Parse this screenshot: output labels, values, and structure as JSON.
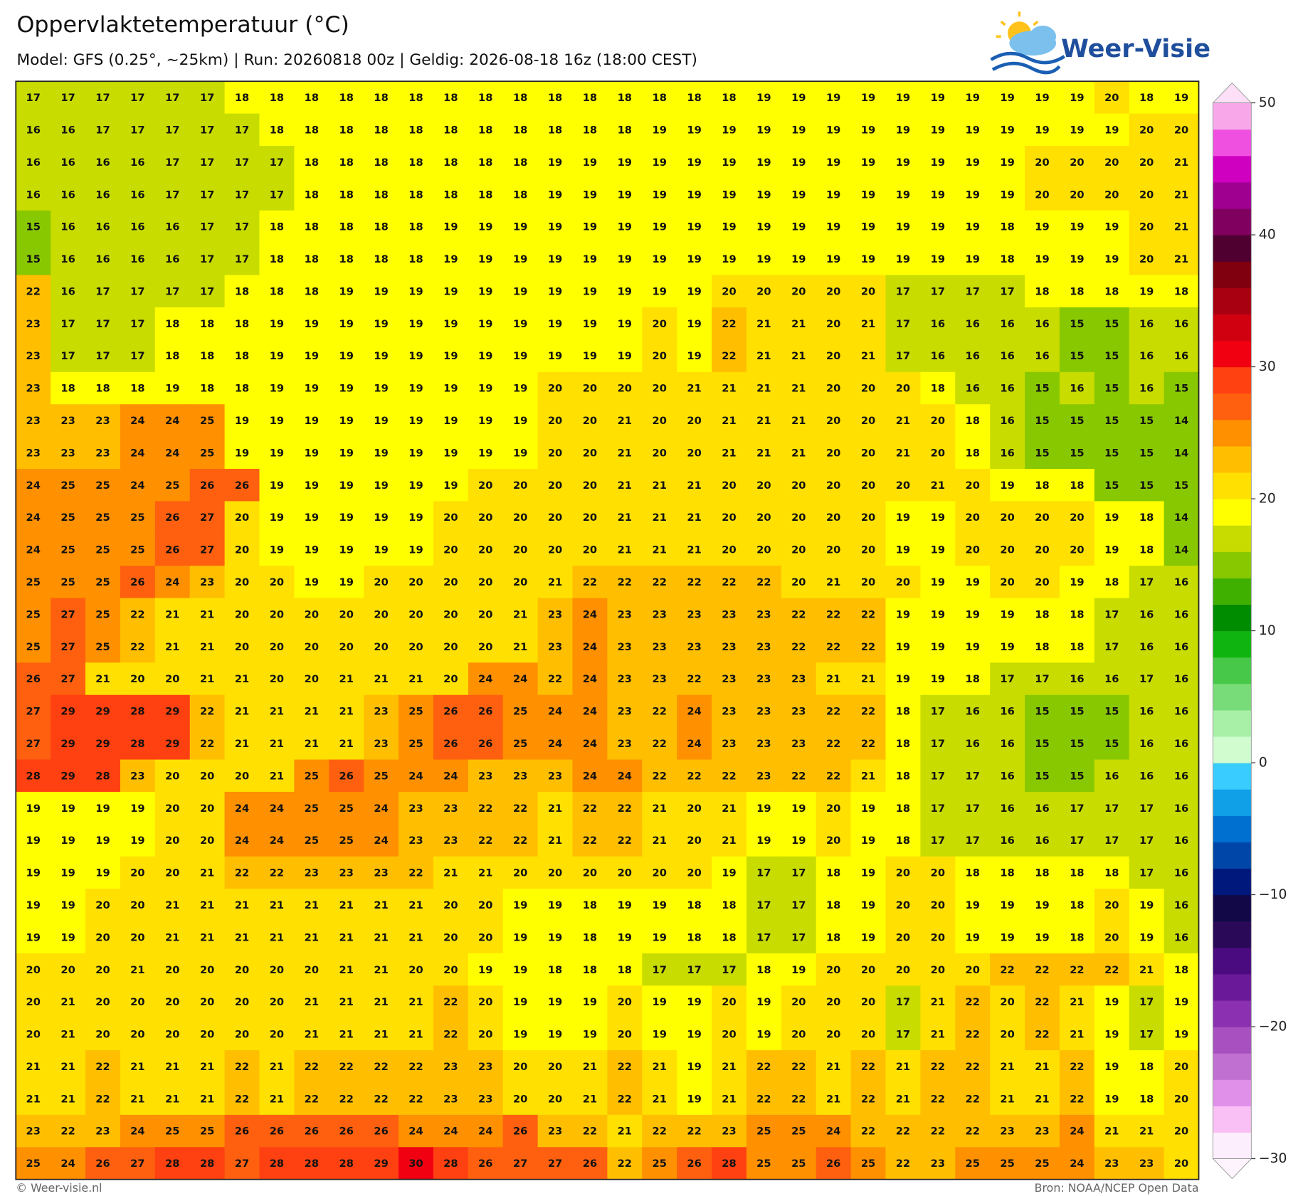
{
  "header": {
    "title": "Oppervlaktetemperatuur (°C)",
    "subtitle": "Model: GFS (0.25°, ~25km)  |  Run: 20260818 00z  |  Geldig: 2026-08-18 16z (18:00 CEST)",
    "logo": "Weer-Visie"
  },
  "footer": {
    "left": "© Weer-visie.nl",
    "right": "Bron: NOAA/NCEP Open Data"
  },
  "colorbar": {
    "lim": [
      -30,
      50
    ],
    "ticks": [
      50,
      40,
      30,
      20,
      10,
      0,
      {
        "value": -10,
        "label": "−10"
      },
      {
        "value": -20,
        "label": "−20"
      },
      {
        "value": -30,
        "label": "−30"
      }
    ],
    "colors": [
      "#fdeefd",
      "#f8c0f4",
      "#e090e8",
      "#c070d0",
      "#a850c0",
      "#8a30b0",
      "#6a1a98",
      "#4a0a80",
      "#2a0a58",
      "#120848",
      "#00187c",
      "#0046a8",
      "#0070d0",
      "#10a0e8",
      "#38ccff",
      "#d0fcd0",
      "#a8f0a8",
      "#78dc78",
      "#48c848",
      "#10b410",
      "#008c00",
      "#40b000",
      "#88c800",
      "#c8dc00",
      "#ffff00",
      "#ffe000",
      "#ffbf00",
      "#ff9000",
      "#ff6010",
      "#ff4010",
      "#f00010",
      "#d00010",
      "#a80010",
      "#800010",
      "#500030",
      "#800060",
      "#a00090",
      "#d000c0",
      "#f050e0",
      "#f8a8e8"
    ]
  },
  "map": {
    "grid": [
      [
        17,
        17,
        17,
        17,
        17,
        17,
        18,
        18,
        18,
        18,
        18,
        18,
        18,
        18,
        18,
        18,
        18,
        18,
        18,
        18,
        18,
        19,
        19,
        19,
        19,
        19,
        19,
        19,
        19,
        19,
        19,
        20,
        18,
        19
      ],
      [
        16,
        16,
        17,
        17,
        17,
        17,
        17,
        18,
        18,
        18,
        18,
        18,
        18,
        18,
        18,
        18,
        18,
        18,
        19,
        19,
        19,
        19,
        19,
        19,
        19,
        19,
        19,
        19,
        19,
        19,
        19,
        19,
        20,
        20
      ],
      [
        16,
        16,
        16,
        16,
        17,
        17,
        17,
        17,
        18,
        18,
        18,
        18,
        18,
        18,
        18,
        19,
        19,
        19,
        19,
        19,
        19,
        19,
        19,
        19,
        19,
        19,
        19,
        19,
        19,
        20,
        20,
        20,
        20,
        21
      ],
      [
        16,
        16,
        16,
        16,
        17,
        17,
        17,
        17,
        18,
        18,
        18,
        18,
        18,
        18,
        18,
        19,
        19,
        19,
        19,
        19,
        19,
        19,
        19,
        19,
        19,
        19,
        19,
        19,
        19,
        20,
        20,
        20,
        20,
        21
      ],
      [
        15,
        16,
        16,
        16,
        16,
        17,
        17,
        18,
        18,
        18,
        18,
        18,
        19,
        19,
        19,
        19,
        19,
        19,
        19,
        19,
        19,
        19,
        19,
        19,
        19,
        19,
        19,
        19,
        18,
        19,
        19,
        19,
        20,
        21
      ],
      [
        15,
        16,
        16,
        16,
        16,
        17,
        17,
        18,
        18,
        18,
        18,
        18,
        19,
        19,
        19,
        19,
        19,
        19,
        19,
        19,
        19,
        19,
        19,
        19,
        19,
        19,
        19,
        19,
        18,
        19,
        19,
        19,
        20,
        21
      ],
      [
        22,
        16,
        17,
        17,
        17,
        17,
        18,
        18,
        18,
        19,
        19,
        19,
        19,
        19,
        19,
        19,
        19,
        19,
        19,
        19,
        20,
        20,
        20,
        20,
        20,
        17,
        17,
        17,
        17,
        18,
        18,
        18,
        19,
        18
      ],
      [
        23,
        17,
        17,
        17,
        18,
        18,
        18,
        19,
        19,
        19,
        19,
        19,
        19,
        19,
        19,
        19,
        19,
        19,
        20,
        19,
        22,
        21,
        21,
        20,
        21,
        17,
        16,
        16,
        16,
        16,
        15,
        15,
        16,
        16
      ],
      [
        23,
        17,
        17,
        17,
        18,
        18,
        18,
        19,
        19,
        19,
        19,
        19,
        19,
        19,
        19,
        19,
        19,
        19,
        20,
        19,
        22,
        21,
        21,
        20,
        21,
        17,
        16,
        16,
        16,
        16,
        15,
        15,
        16,
        16
      ],
      [
        23,
        18,
        18,
        18,
        19,
        18,
        18,
        19,
        19,
        19,
        19,
        19,
        19,
        19,
        19,
        20,
        20,
        20,
        20,
        21,
        21,
        21,
        21,
        20,
        20,
        20,
        18,
        16,
        16,
        15,
        16,
        15,
        16,
        15
      ],
      [
        23,
        23,
        23,
        24,
        24,
        25,
        19,
        19,
        19,
        19,
        19,
        19,
        19,
        19,
        19,
        20,
        20,
        21,
        20,
        20,
        21,
        21,
        21,
        20,
        20,
        21,
        20,
        18,
        16,
        15,
        15,
        15,
        15,
        14
      ],
      [
        23,
        23,
        23,
        24,
        24,
        25,
        19,
        19,
        19,
        19,
        19,
        19,
        19,
        19,
        19,
        20,
        20,
        21,
        20,
        20,
        21,
        21,
        21,
        20,
        20,
        21,
        20,
        18,
        16,
        15,
        15,
        15,
        15,
        14
      ],
      [
        24,
        25,
        25,
        24,
        25,
        26,
        26,
        19,
        19,
        19,
        19,
        19,
        19,
        20,
        20,
        20,
        20,
        21,
        21,
        21,
        20,
        20,
        20,
        20,
        20,
        20,
        21,
        20,
        19,
        18,
        18,
        15,
        15,
        15
      ],
      [
        24,
        25,
        25,
        25,
        26,
        27,
        20,
        19,
        19,
        19,
        19,
        19,
        20,
        20,
        20,
        20,
        20,
        21,
        21,
        21,
        20,
        20,
        20,
        20,
        20,
        19,
        19,
        20,
        20,
        20,
        20,
        19,
        18,
        14
      ],
      [
        24,
        25,
        25,
        25,
        26,
        27,
        20,
        19,
        19,
        19,
        19,
        19,
        20,
        20,
        20,
        20,
        20,
        21,
        21,
        21,
        20,
        20,
        20,
        20,
        20,
        19,
        19,
        20,
        20,
        20,
        20,
        19,
        18,
        14
      ],
      [
        25,
        25,
        25,
        26,
        24,
        23,
        20,
        20,
        19,
        19,
        20,
        20,
        20,
        20,
        20,
        21,
        22,
        22,
        22,
        22,
        22,
        22,
        20,
        21,
        20,
        20,
        19,
        19,
        20,
        20,
        19,
        18,
        17,
        16
      ],
      [
        25,
        27,
        25,
        22,
        21,
        21,
        20,
        20,
        20,
        20,
        20,
        20,
        20,
        20,
        21,
        23,
        24,
        23,
        23,
        23,
        23,
        23,
        22,
        22,
        22,
        19,
        19,
        19,
        19,
        18,
        18,
        17,
        16,
        16
      ],
      [
        25,
        27,
        25,
        22,
        21,
        21,
        20,
        20,
        20,
        20,
        20,
        20,
        20,
        20,
        21,
        23,
        24,
        23,
        23,
        23,
        23,
        23,
        22,
        22,
        22,
        19,
        19,
        19,
        19,
        18,
        18,
        17,
        16,
        16
      ],
      [
        26,
        27,
        21,
        20,
        20,
        21,
        21,
        20,
        20,
        21,
        21,
        21,
        20,
        24,
        24,
        22,
        24,
        23,
        23,
        22,
        23,
        23,
        23,
        21,
        21,
        19,
        19,
        18,
        17,
        17,
        16,
        16,
        17,
        16
      ],
      [
        27,
        29,
        29,
        28,
        29,
        22,
        21,
        21,
        21,
        21,
        23,
        25,
        26,
        26,
        25,
        24,
        24,
        23,
        22,
        24,
        23,
        23,
        23,
        22,
        22,
        18,
        17,
        16,
        16,
        15,
        15,
        15,
        16,
        16
      ],
      [
        27,
        29,
        29,
        28,
        29,
        22,
        21,
        21,
        21,
        21,
        23,
        25,
        26,
        26,
        25,
        24,
        24,
        23,
        22,
        24,
        23,
        23,
        23,
        22,
        22,
        18,
        17,
        16,
        16,
        15,
        15,
        15,
        16,
        16
      ],
      [
        28,
        29,
        28,
        23,
        20,
        20,
        20,
        21,
        25,
        26,
        25,
        24,
        24,
        23,
        23,
        23,
        24,
        24,
        22,
        22,
        22,
        23,
        22,
        22,
        21,
        18,
        17,
        17,
        16,
        15,
        15,
        16,
        16,
        16
      ],
      [
        19,
        19,
        19,
        19,
        20,
        20,
        24,
        24,
        25,
        25,
        24,
        23,
        23,
        22,
        22,
        21,
        22,
        22,
        21,
        20,
        21,
        19,
        19,
        20,
        19,
        18,
        17,
        17,
        16,
        16,
        17,
        17,
        17,
        16
      ],
      [
        19,
        19,
        19,
        19,
        20,
        20,
        24,
        24,
        25,
        25,
        24,
        23,
        23,
        22,
        22,
        21,
        22,
        22,
        21,
        20,
        21,
        19,
        19,
        20,
        19,
        18,
        17,
        17,
        16,
        16,
        17,
        17,
        17,
        16
      ],
      [
        19,
        19,
        19,
        20,
        20,
        21,
        22,
        22,
        23,
        23,
        23,
        22,
        21,
        21,
        20,
        20,
        20,
        20,
        20,
        20,
        19,
        17,
        17,
        18,
        19,
        20,
        20,
        18,
        18,
        18,
        18,
        18,
        17,
        16
      ],
      [
        19,
        19,
        20,
        20,
        21,
        21,
        21,
        21,
        21,
        21,
        21,
        21,
        20,
        20,
        19,
        19,
        18,
        19,
        19,
        18,
        18,
        17,
        17,
        18,
        19,
        20,
        20,
        19,
        19,
        19,
        18,
        20,
        19,
        16
      ],
      [
        19,
        19,
        20,
        20,
        21,
        21,
        21,
        21,
        21,
        21,
        21,
        21,
        20,
        20,
        19,
        19,
        18,
        19,
        19,
        18,
        18,
        17,
        17,
        18,
        19,
        20,
        20,
        19,
        19,
        19,
        18,
        20,
        19,
        16
      ],
      [
        20,
        20,
        20,
        21,
        20,
        20,
        20,
        20,
        20,
        21,
        21,
        20,
        20,
        19,
        19,
        18,
        18,
        18,
        17,
        17,
        17,
        18,
        19,
        20,
        20,
        20,
        20,
        20,
        22,
        22,
        22,
        22,
        21,
        18
      ],
      [
        20,
        21,
        20,
        20,
        20,
        20,
        20,
        20,
        21,
        21,
        21,
        21,
        22,
        20,
        19,
        19,
        19,
        20,
        19,
        19,
        20,
        19,
        20,
        20,
        20,
        17,
        21,
        22,
        20,
        22,
        21,
        19,
        17,
        19
      ],
      [
        20,
        21,
        20,
        20,
        20,
        20,
        20,
        20,
        21,
        21,
        21,
        21,
        22,
        20,
        19,
        19,
        19,
        20,
        19,
        19,
        20,
        19,
        20,
        20,
        20,
        17,
        21,
        22,
        20,
        22,
        21,
        19,
        17,
        19
      ],
      [
        21,
        21,
        22,
        21,
        21,
        21,
        22,
        21,
        22,
        22,
        22,
        22,
        23,
        23,
        20,
        20,
        21,
        22,
        21,
        19,
        21,
        22,
        22,
        21,
        22,
        21,
        22,
        22,
        21,
        21,
        22,
        19,
        18,
        20
      ],
      [
        21,
        21,
        22,
        21,
        21,
        21,
        22,
        21,
        22,
        22,
        22,
        22,
        23,
        23,
        20,
        20,
        21,
        22,
        21,
        19,
        21,
        22,
        22,
        21,
        22,
        21,
        22,
        22,
        21,
        21,
        22,
        19,
        18,
        20
      ],
      [
        23,
        22,
        23,
        24,
        25,
        25,
        26,
        26,
        26,
        26,
        26,
        24,
        24,
        24,
        26,
        23,
        22,
        21,
        22,
        22,
        23,
        25,
        25,
        24,
        22,
        22,
        22,
        22,
        23,
        23,
        24,
        21,
        21,
        20
      ],
      [
        25,
        24,
        26,
        27,
        28,
        28,
        27,
        28,
        28,
        28,
        29,
        30,
        28,
        26,
        27,
        27,
        26,
        22,
        25,
        26,
        28,
        25,
        25,
        26,
        25,
        22,
        23,
        25,
        25,
        25,
        24,
        23,
        23,
        20
      ]
    ]
  }
}
